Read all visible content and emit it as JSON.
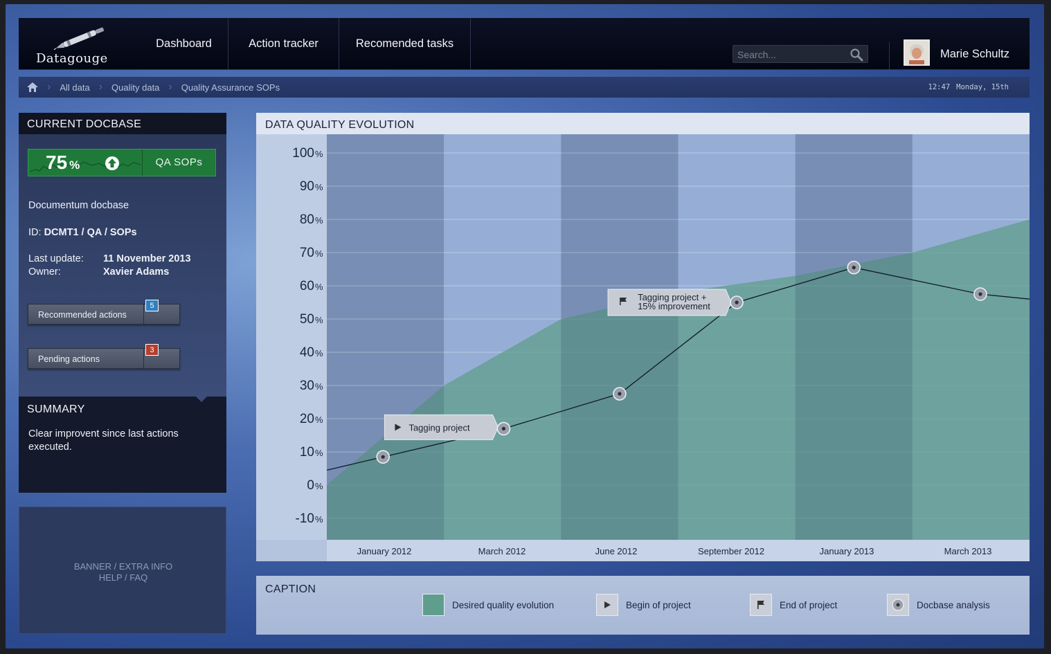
{
  "app": {
    "brand": "Datagouge"
  },
  "nav": {
    "items": [
      "Dashboard",
      "Action tracker",
      "Recomended tasks"
    ]
  },
  "search": {
    "placeholder": "Search..."
  },
  "user": {
    "name": "Marie Schultz"
  },
  "breadcrumb": {
    "items": [
      "All data",
      "Quality data",
      "Quality Assurance SOPs"
    ]
  },
  "clock": {
    "time": "12:47",
    "date": "Monday, 15th"
  },
  "docbase": {
    "title": "CURRENT DOCBASE",
    "score_value": "75",
    "score_unit": "%",
    "score_name": "QA SOPs",
    "type": "Documentum docbase",
    "id_label": "ID:",
    "id_value": "DCMT1 / QA / SOPs",
    "last_update_label": "Last update:",
    "last_update_value": "11 November 2013",
    "owner_label": "Owner:",
    "owner_value": "Xavier Adams",
    "recommended_label": "Recommended actions",
    "recommended_count": "5",
    "pending_label": "Pending actions",
    "pending_count": "3",
    "colors": {
      "score_bg": "#1f7a3a",
      "badge_blue": "#2f7fc0",
      "badge_red": "#b3402d"
    }
  },
  "summary": {
    "title": "SUMMARY",
    "text": "Clear improvent since last actions executed."
  },
  "banner": {
    "line1": "BANNER / EXTRA INFO",
    "line2": "HELP / FAQ"
  },
  "chart": {
    "title": "DATA QUALITY EVOLUTION"
  },
  "chart_data": {
    "type": "area",
    "ylim": [
      -10,
      100
    ],
    "yticks": [
      100,
      90,
      80,
      70,
      60,
      50,
      40,
      30,
      20,
      10,
      0,
      -10
    ],
    "y_unit": "%",
    "x_categories": [
      "January 2012",
      "March 2012",
      "June 2012",
      "September 2012",
      "January 2013",
      "March 2013"
    ],
    "series": [
      {
        "kind": "area",
        "color": "#5f9e8c",
        "x": [
          0,
          1,
          2,
          3,
          4,
          5,
          6
        ],
        "y": [
          0,
          30,
          50,
          58,
          63,
          70,
          80
        ]
      },
      {
        "kind": "line",
        "x": [
          0,
          0.48,
          1.51,
          2.5,
          3.5,
          4.5,
          5.58,
          6
        ],
        "y": [
          4.5,
          8.5,
          17,
          27.5,
          55,
          65.5,
          57.5,
          56
        ]
      }
    ],
    "markers": [
      {
        "x": 0.48,
        "y": 8.5,
        "kind": "analysis"
      },
      {
        "x": 1.51,
        "y": 17,
        "kind": "analysis"
      },
      {
        "x": 2.5,
        "y": 27.5,
        "kind": "analysis"
      },
      {
        "x": 3.5,
        "y": 55,
        "kind": "analysis"
      },
      {
        "x": 4.5,
        "y": 65.5,
        "kind": "analysis"
      },
      {
        "x": 5.58,
        "y": 57.5,
        "kind": "analysis"
      }
    ],
    "annotations": [
      {
        "x": 1.51,
        "y": 17,
        "icon": "play",
        "lines": [
          "Tagging project"
        ]
      },
      {
        "x": 3.5,
        "y": 55,
        "icon": "flag",
        "lines": [
          "Tagging project +",
          "15% improvement"
        ]
      }
    ]
  },
  "caption": {
    "title": "CAPTION",
    "items": [
      {
        "icon": "swatch",
        "label": "Desired quality evolution"
      },
      {
        "icon": "play",
        "label": "Begin of project"
      },
      {
        "icon": "flag",
        "label": "End of project"
      },
      {
        "icon": "analysis",
        "label": "Docbase analysis"
      }
    ]
  }
}
